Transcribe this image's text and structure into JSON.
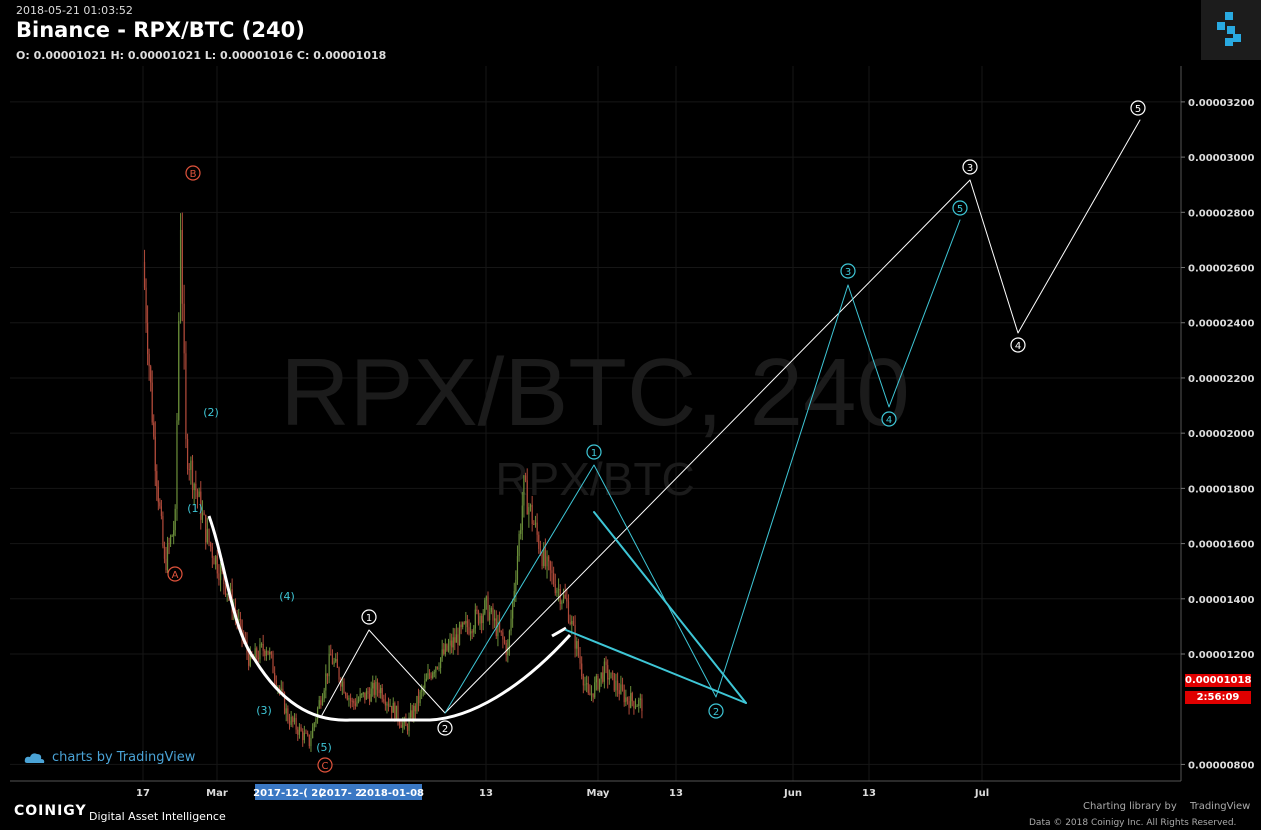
{
  "header": {
    "timestamp": "2018-05-21 01:03:52",
    "title": "Binance - RPX/BTC (240)",
    "ohlc": "O: 0.00001021 H: 0.00001021 L: 0.00001016 C: 0.00001018"
  },
  "watermark": {
    "main": "RPX/BTC, 240",
    "sub": "RPX/BTC"
  },
  "price_tag": {
    "value": "0.00001018",
    "countdown": "2:56:09"
  },
  "footer": {
    "tv_credit": "charts by TradingView",
    "brand": "COINIGY",
    "brand_tag": "Digital Asset Intelligence",
    "charting_lib": "Charting library by",
    "charting_lib_brand": "TradingView",
    "copyright": "Data © 2018   Coinigy Inc. All Rights Reserved."
  },
  "colors": {
    "background": "#000000",
    "up": "#6b8f3a",
    "down": "#b04a3a",
    "wave_cyan": "#3ec6d6",
    "wave_white": "#ffffff",
    "wave_red": "#e0533c",
    "price_tag": "#e00000"
  },
  "chart_data": {
    "type": "candlestick",
    "symbol": "RPX/BTC",
    "interval": "240",
    "exchange": "Binance",
    "y_axis": {
      "ticks": [
        "0.00003200",
        "0.00003000",
        "0.00002800",
        "0.00002600",
        "0.00002400",
        "0.00002200",
        "0.00002000",
        "0.00001800",
        "0.00001600",
        "0.00001400",
        "0.00001200",
        "0.00000800"
      ],
      "range": [
        7.4e-06,
        3.33e-05
      ]
    },
    "x_axis": {
      "ticks": [
        "17",
        "Mar",
        "13",
        "May",
        "13",
        "Jun",
        "13",
        "Jul"
      ],
      "highlighted_range_labels": [
        "2017-12-( 2(",
        "2017- 2",
        "2018-01-08"
      ]
    },
    "price_path": [
      {
        "date": "2018-02-17",
        "price": 2.62e-05
      },
      {
        "date": "2018-02-19",
        "price": 1.98e-05
      },
      {
        "date": "2018-02-21",
        "price": 1.52e-05
      },
      {
        "date": "2018-02-23",
        "price": 1.68e-05
      },
      {
        "date": "2018-02-24",
        "price": 2.78e-05
      },
      {
        "date": "2018-02-25",
        "price": 1.95e-05
      },
      {
        "date": "2018-03-01",
        "price": 1.62e-05
      },
      {
        "date": "2018-03-05",
        "price": 1.42e-05
      },
      {
        "date": "2018-03-09",
        "price": 1.17e-05
      },
      {
        "date": "2018-03-12",
        "price": 1.23e-05
      },
      {
        "date": "2018-03-16",
        "price": 9.7e-06
      },
      {
        "date": "2018-03-20",
        "price": 8.8e-06
      },
      {
        "date": "2018-03-24",
        "price": 1.19e-05
      },
      {
        "date": "2018-03-28",
        "price": 1.02e-05
      },
      {
        "date": "2018-04-02",
        "price": 1.08e-05
      },
      {
        "date": "2018-04-07",
        "price": 9.3e-06
      },
      {
        "date": "2018-04-12",
        "price": 1.15e-05
      },
      {
        "date": "2018-04-17",
        "price": 1.27e-05
      },
      {
        "date": "2018-04-22",
        "price": 1.37e-05
      },
      {
        "date": "2018-04-26",
        "price": 1.21e-05
      },
      {
        "date": "2018-04-29",
        "price": 1.8e-05
      },
      {
        "date": "2018-05-03",
        "price": 1.52e-05
      },
      {
        "date": "2018-05-07",
        "price": 1.38e-05
      },
      {
        "date": "2018-05-11",
        "price": 1.04e-05
      },
      {
        "date": "2018-05-14",
        "price": 1.14e-05
      },
      {
        "date": "2018-05-18",
        "price": 1.04e-05
      },
      {
        "date": "2018-05-21",
        "price": 1.018e-05
      }
    ],
    "annotations": [
      {
        "label": "B",
        "style": "red-circle"
      },
      {
        "label": "A",
        "style": "red-circle"
      },
      {
        "label": "C",
        "style": "red-circle"
      },
      {
        "label": "(1)",
        "style": "cyan"
      },
      {
        "label": "(2)",
        "style": "cyan"
      },
      {
        "label": "(3)",
        "style": "cyan"
      },
      {
        "label": "(4)",
        "style": "cyan"
      },
      {
        "label": "(5)",
        "style": "cyan"
      },
      {
        "label": "1",
        "style": "white-circle"
      },
      {
        "label": "2",
        "style": "white-circle"
      },
      {
        "label": "3",
        "style": "white-circle"
      },
      {
        "label": "4",
        "style": "white-circle"
      },
      {
        "label": "5",
        "style": "white-circle"
      },
      {
        "label": "1",
        "style": "cyan-circle"
      },
      {
        "label": "2",
        "style": "cyan-circle"
      },
      {
        "label": "3",
        "style": "cyan-circle"
      },
      {
        "label": "4",
        "style": "cyan-circle"
      },
      {
        "label": "5",
        "style": "cyan-circle"
      }
    ]
  }
}
